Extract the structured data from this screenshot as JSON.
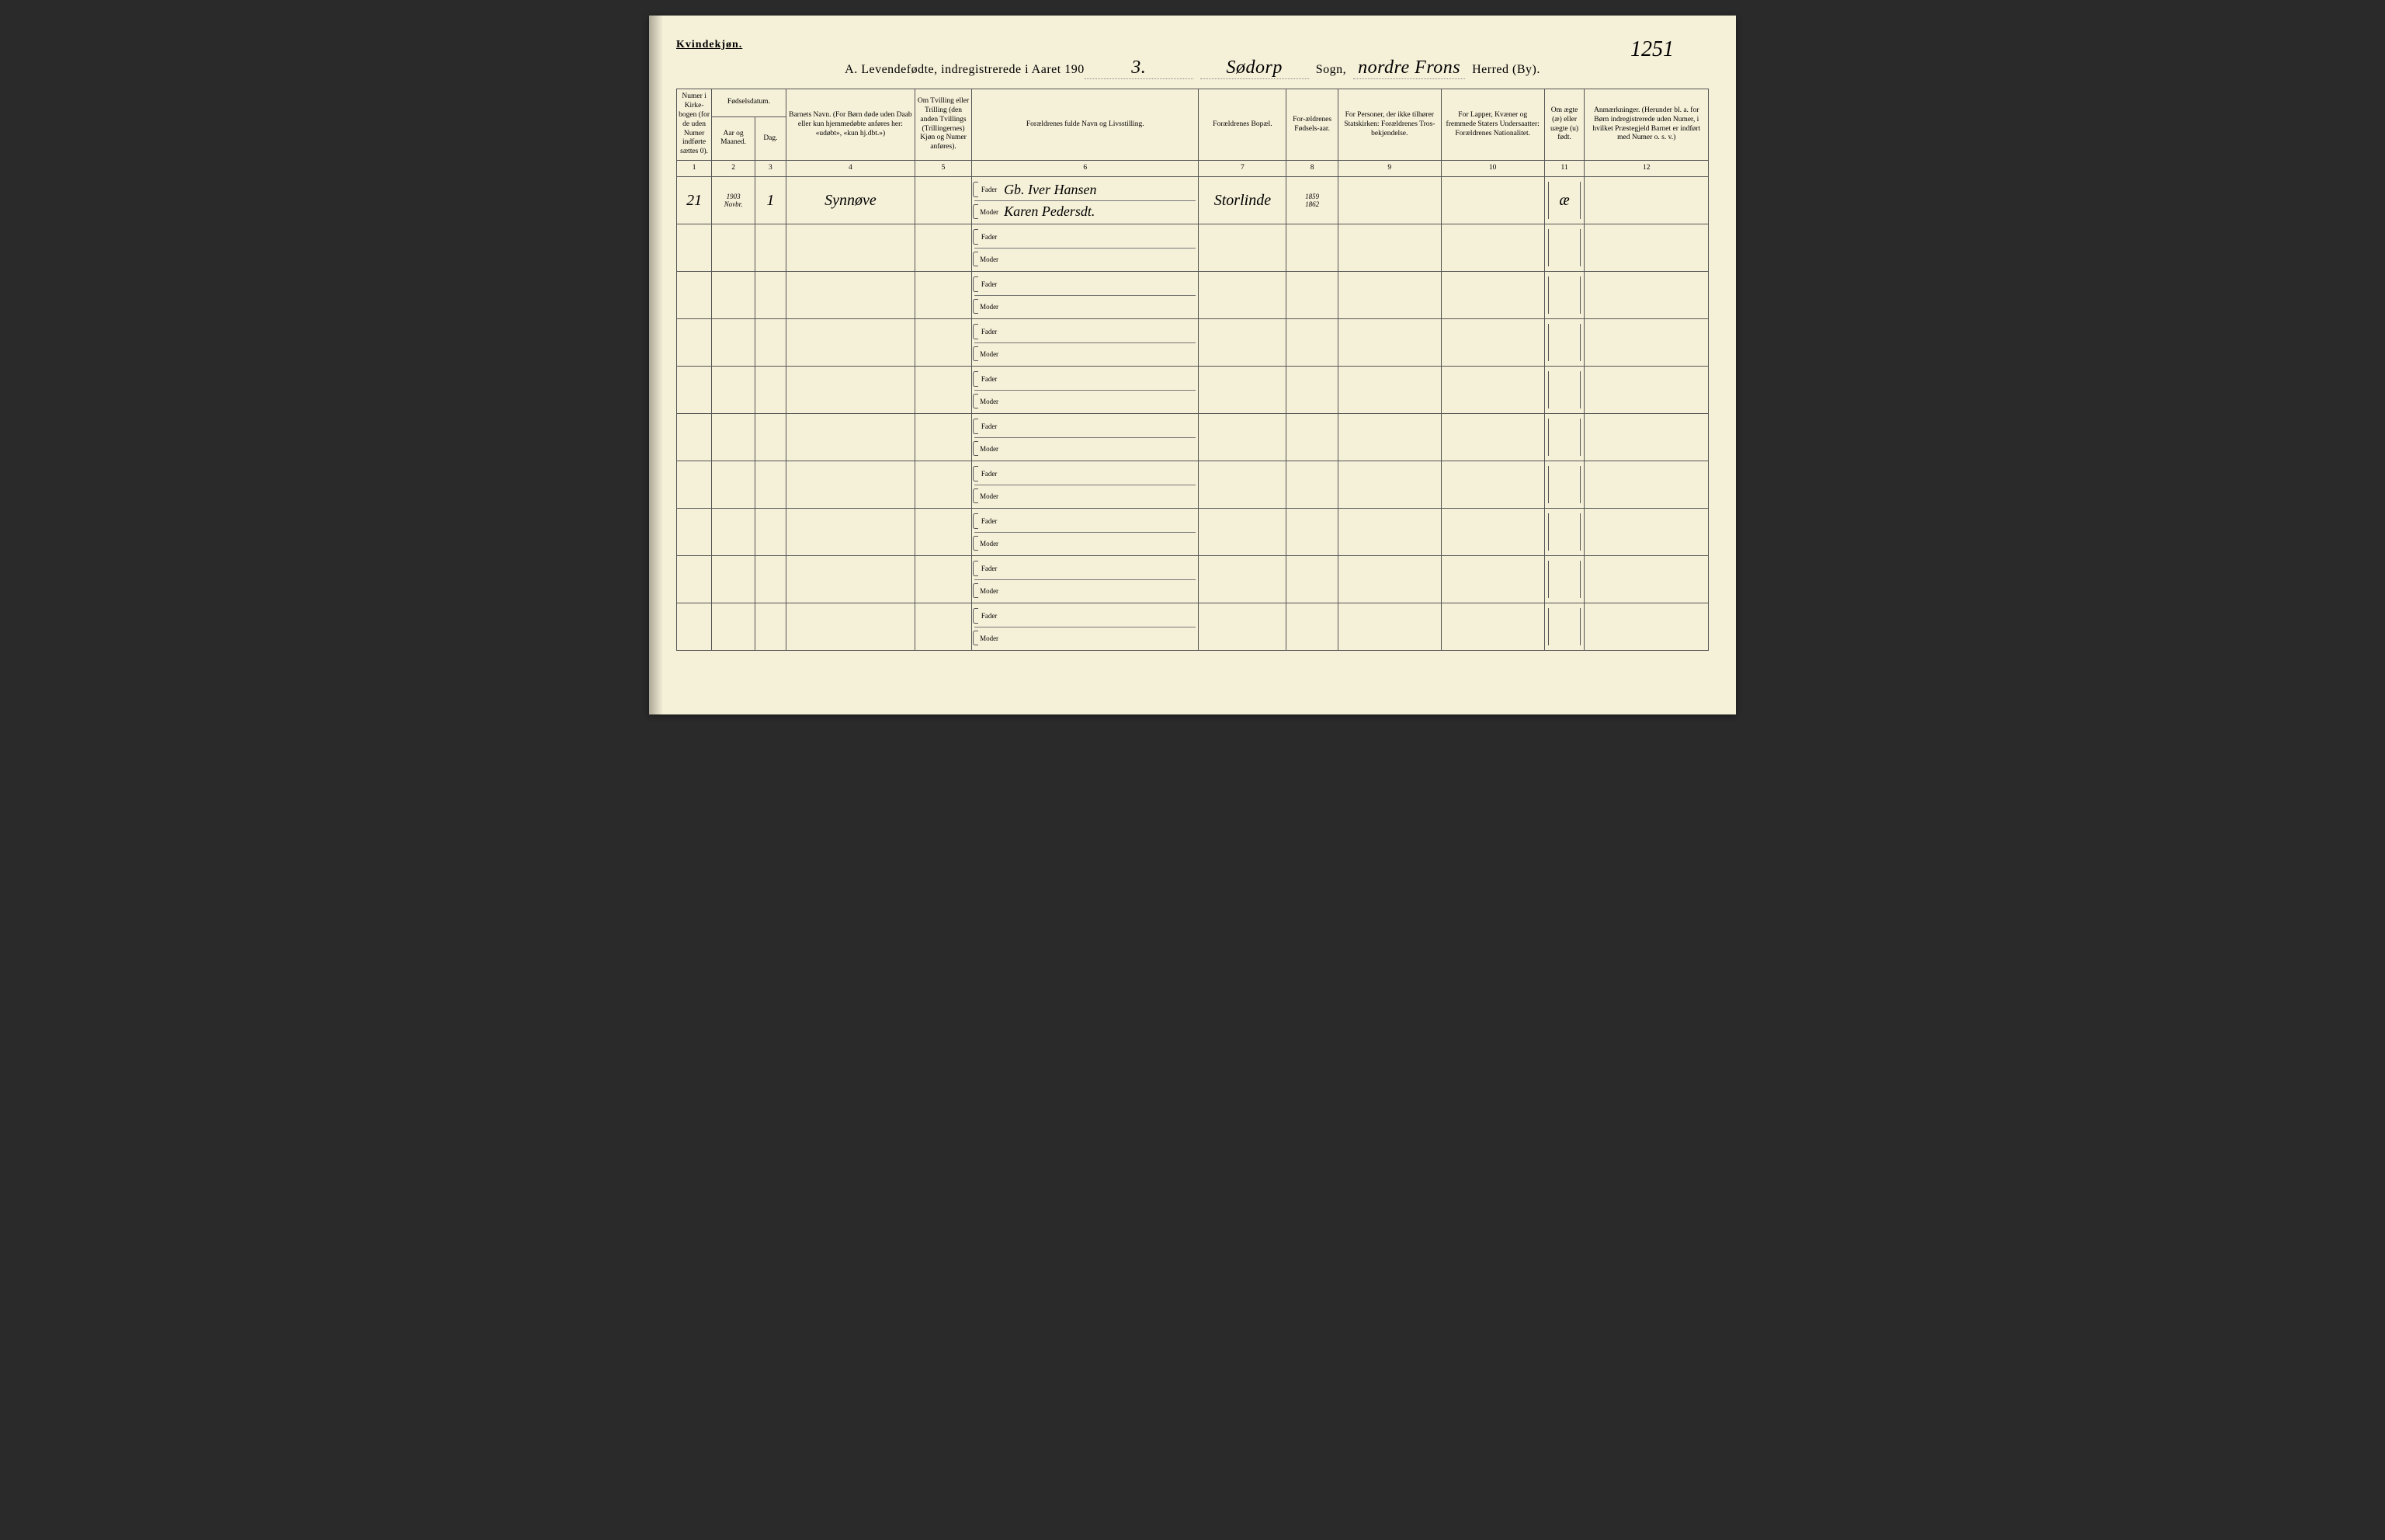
{
  "gender_label": "Kvindekjøn.",
  "page_number": "1251",
  "title": {
    "prefix": "A.  Levendefødte, indregistrerede i Aaret 190",
    "year_digit": "3.",
    "sogn_value": "Sødorp",
    "sogn_label": "Sogn,",
    "herred_value": "nordre Frons",
    "herred_label": "Herred (By)."
  },
  "headers": {
    "c1": "Numer i Kirke-bogen (for de uden Numer indførte sættes 0).",
    "c2_group": "Fødselsdatum.",
    "c2": "Aar og Maaned.",
    "c3": "Dag.",
    "c4": "Barnets Navn.\n(For Børn døde uden Daab eller kun hjemmedøbte anføres her: «udøbt», «kun hj.dbt.»)",
    "c5": "Om Tvilling eller Trilling (den anden Tvillings (Trillingernes) Kjøn og Numer anføres).",
    "c6": "Forældrenes fulde Navn og Livsstilling.",
    "c7": "Forældrenes Bopæl.",
    "c8": "For-ældrenes Fødsels-aar.",
    "c9": "For Personer, der ikke tilhører Statskirken: Forældrenes Tros-bekjendelse.",
    "c10": "For Lapper, Kvæner og fremmede Staters Undersaatter: Forældrenes Nationalitet.",
    "c11": "Om ægte (æ) eller uægte (u) født.",
    "c12": "Anmærkninger.\n(Herunder bl. a. for Børn indregistrerede uden Numer, i hvilket Præstegjeld Barnet er indført med Numer o. s. v.)"
  },
  "colnums": [
    "1",
    "2",
    "3",
    "4",
    "5",
    "6",
    "7",
    "8",
    "9",
    "10",
    "11",
    "12"
  ],
  "fm": {
    "fader": "Fader",
    "moder": "Moder"
  },
  "rows": [
    {
      "c1": "21",
      "c2_top": "1903",
      "c2_bot": "Novbr.",
      "c3": "1",
      "c4": "Synnøve",
      "c5": "",
      "fader": "Gb. Iver Hansen",
      "moder": "Karen Pedersdt.",
      "c7": "Storlinde",
      "c8_f": "1859",
      "c8_m": "1862",
      "c9": "",
      "c10": "",
      "c11": "æ",
      "c12": ""
    },
    {
      "c1": "",
      "c2_top": "",
      "c2_bot": "",
      "c3": "",
      "c4": "",
      "c5": "",
      "fader": "",
      "moder": "",
      "c7": "",
      "c8_f": "",
      "c8_m": "",
      "c9": "",
      "c10": "",
      "c11": "",
      "c12": ""
    },
    {
      "c1": "",
      "c2_top": "",
      "c2_bot": "",
      "c3": "",
      "c4": "",
      "c5": "",
      "fader": "",
      "moder": "",
      "c7": "",
      "c8_f": "",
      "c8_m": "",
      "c9": "",
      "c10": "",
      "c11": "",
      "c12": ""
    },
    {
      "c1": "",
      "c2_top": "",
      "c2_bot": "",
      "c3": "",
      "c4": "",
      "c5": "",
      "fader": "",
      "moder": "",
      "c7": "",
      "c8_f": "",
      "c8_m": "",
      "c9": "",
      "c10": "",
      "c11": "",
      "c12": ""
    },
    {
      "c1": "",
      "c2_top": "",
      "c2_bot": "",
      "c3": "",
      "c4": "",
      "c5": "",
      "fader": "",
      "moder": "",
      "c7": "",
      "c8_f": "",
      "c8_m": "",
      "c9": "",
      "c10": "",
      "c11": "",
      "c12": ""
    },
    {
      "c1": "",
      "c2_top": "",
      "c2_bot": "",
      "c3": "",
      "c4": "",
      "c5": "",
      "fader": "",
      "moder": "",
      "c7": "",
      "c8_f": "",
      "c8_m": "",
      "c9": "",
      "c10": "",
      "c11": "",
      "c12": ""
    },
    {
      "c1": "",
      "c2_top": "",
      "c2_bot": "",
      "c3": "",
      "c4": "",
      "c5": "",
      "fader": "",
      "moder": "",
      "c7": "",
      "c8_f": "",
      "c8_m": "",
      "c9": "",
      "c10": "",
      "c11": "",
      "c12": ""
    },
    {
      "c1": "",
      "c2_top": "",
      "c2_bot": "",
      "c3": "",
      "c4": "",
      "c5": "",
      "fader": "",
      "moder": "",
      "c7": "",
      "c8_f": "",
      "c8_m": "",
      "c9": "",
      "c10": "",
      "c11": "",
      "c12": ""
    },
    {
      "c1": "",
      "c2_top": "",
      "c2_bot": "",
      "c3": "",
      "c4": "",
      "c5": "",
      "fader": "",
      "moder": "",
      "c7": "",
      "c8_f": "",
      "c8_m": "",
      "c9": "",
      "c10": "",
      "c11": "",
      "c12": ""
    },
    {
      "c1": "",
      "c2_top": "",
      "c2_bot": "",
      "c3": "",
      "c4": "",
      "c5": "",
      "fader": "",
      "moder": "",
      "c7": "",
      "c8_f": "",
      "c8_m": "",
      "c9": "",
      "c10": "",
      "c11": "",
      "c12": ""
    }
  ]
}
